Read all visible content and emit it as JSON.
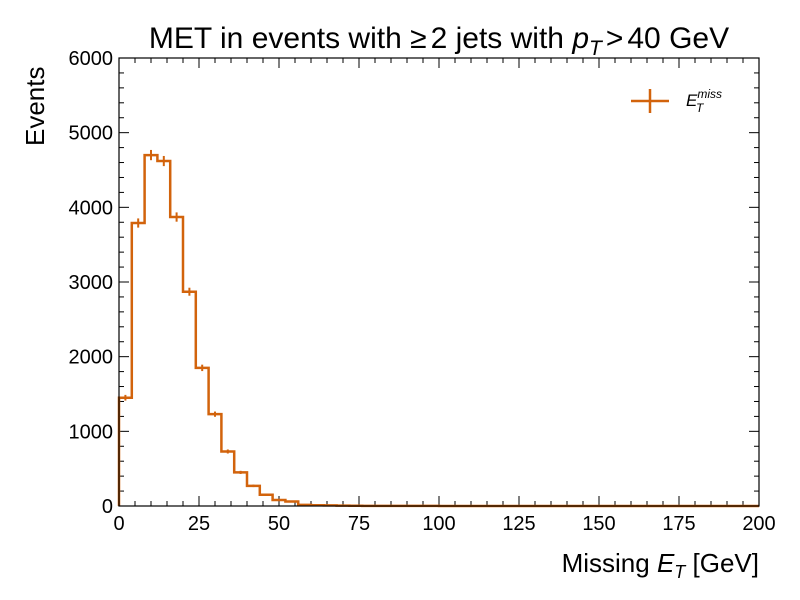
{
  "chart_data": {
    "type": "histogram",
    "title": {
      "prefix": "MET in events with ",
      "geq": "≥",
      "middle": "2 jets with ",
      "var_main": "p",
      "var_sub": "T",
      "gt": ">",
      "suffix": "40 GeV"
    },
    "xlabel": {
      "prefix": "Missing ",
      "var_main": "E",
      "var_sub": "T",
      "suffix": " [GeV]"
    },
    "ylabel": "Events",
    "xlim": [
      0,
      200
    ],
    "ylim": [
      0,
      6000
    ],
    "xticks": [
      0,
      25,
      50,
      75,
      100,
      125,
      150,
      175,
      200
    ],
    "yticks": [
      0,
      1000,
      2000,
      3000,
      4000,
      5000,
      6000
    ],
    "bin_width": 4,
    "bin_edges_start": 0,
    "counts": [
      1450,
      3790,
      4700,
      4620,
      3870,
      2870,
      1850,
      1230,
      730,
      450,
      270,
      150,
      80,
      60,
      15,
      10,
      8,
      5,
      3,
      2,
      1,
      1,
      1,
      1,
      1,
      0,
      0,
      0,
      0,
      0,
      0,
      0,
      0,
      0,
      0,
      0,
      0,
      0,
      0,
      0,
      0,
      0,
      0,
      0,
      0,
      0,
      0,
      0,
      0,
      0
    ],
    "series": [
      {
        "name_main": "E",
        "name_sub": "T",
        "name_sup": "miss",
        "color": "#d2630c"
      }
    ],
    "legend_position": "top-right"
  }
}
